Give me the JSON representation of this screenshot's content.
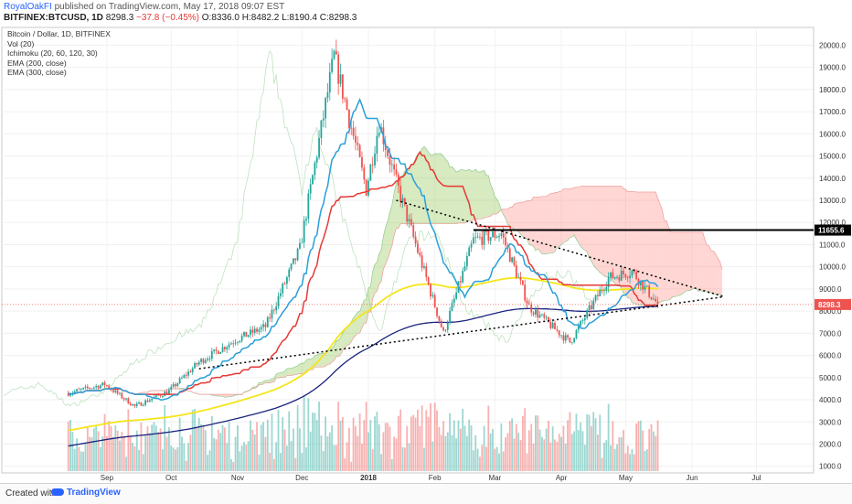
{
  "header": {
    "author": "RoyalOakFI",
    "published_text": "published on TradingView.com, May 17, 2018 09:07 EST",
    "symbol_line": "BITFINEX:BTCUSD, 1D",
    "last": "8298.3",
    "change": "−37.8 (−0.45%)",
    "ohlc": "O:8336.0 H:8482.2 L:8190.4 C:8298.3"
  },
  "legend": [
    "Bitcoin / Dollar, 1D, BITFINEX",
    "Vol (20)",
    "Ichimoku (20, 60, 120, 30)",
    "EMA (200, close)",
    "EMA (300, close)"
  ],
  "price_tags": {
    "resistance": "11655.6",
    "last": "8298.3"
  },
  "footer": {
    "created": "Created with",
    "brand": "TradingView"
  },
  "colors": {
    "up": "#26a69a",
    "down": "#ef5350",
    "tenkan": "#29a0d8",
    "kijun": "#e53935",
    "ema200": "#f5e51a",
    "ema300": "#1a237e",
    "cloud_bull": "#8bc34a",
    "cloud_bear": "#ff8a80"
  },
  "chart_data": {
    "type": "candlestick",
    "x_ticks": [
      "Sep",
      "Oct",
      "Nov",
      "Dec",
      "2018",
      "Feb",
      "Mar",
      "Apr",
      "May",
      "Jun",
      "Jul"
    ],
    "y_ticks": [
      1000,
      2000,
      3000,
      4000,
      5000,
      6000,
      7000,
      8000,
      9000,
      10000,
      11000,
      12000,
      13000,
      14000,
      15000,
      16000,
      17000,
      18000,
      19000,
      20000
    ],
    "ylim": [
      700,
      20800
    ],
    "resistance_level": 11655.6,
    "last_price": 8298.3,
    "close_path": [
      {
        "x": "Aug 15",
        "y": 4300
      },
      {
        "x": "Sep 1",
        "y": 4700
      },
      {
        "x": "Sep 15",
        "y": 3700
      },
      {
        "x": "Oct 1",
        "y": 4400
      },
      {
        "x": "Oct 15",
        "y": 5700
      },
      {
        "x": "Nov 1",
        "y": 6700
      },
      {
        "x": "Nov 15",
        "y": 7300
      },
      {
        "x": "Dec 1",
        "y": 10800
      },
      {
        "x": "Dec 17",
        "y": 19500
      },
      {
        "x": "Jan 1",
        "y": 13500
      },
      {
        "x": "Jan 7",
        "y": 16500
      },
      {
        "x": "Jan 15",
        "y": 13800
      },
      {
        "x": "Feb 6",
        "y": 7000
      },
      {
        "x": "Feb 20",
        "y": 11200
      },
      {
        "x": "Mar 5",
        "y": 11500
      },
      {
        "x": "Mar 18",
        "y": 8200
      },
      {
        "x": "Apr 6",
        "y": 6600
      },
      {
        "x": "Apr 24",
        "y": 9500
      },
      {
        "x": "May 5",
        "y": 9800
      },
      {
        "x": "May 17",
        "y": 8298
      }
    ]
  }
}
